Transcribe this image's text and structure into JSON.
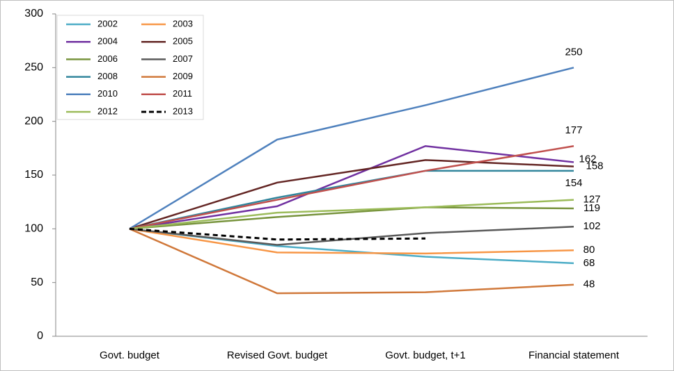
{
  "chart_data": {
    "type": "line",
    "categories": [
      "Govt. budget",
      "Revised Govt. budget",
      "Govt. budget, t+1",
      "Financial statement"
    ],
    "ylim": [
      0,
      300
    ],
    "yticks": [
      0,
      50,
      100,
      150,
      200,
      250,
      300
    ],
    "grid": false,
    "legend": "upper left",
    "series": [
      {
        "name": "2002",
        "color": "#4bacc6",
        "values": [
          100,
          84,
          74,
          68
        ]
      },
      {
        "name": "2003",
        "color": "#f79646",
        "values": [
          100,
          78,
          77,
          80
        ]
      },
      {
        "name": "2004",
        "color": "#7030a0",
        "values": [
          100,
          121,
          177,
          162
        ]
      },
      {
        "name": "2005",
        "color": "#632523",
        "values": [
          100,
          143,
          164,
          158
        ]
      },
      {
        "name": "2006",
        "color": "#77933c",
        "values": [
          100,
          111,
          120,
          119
        ]
      },
      {
        "name": "2007",
        "color": "#595959",
        "values": [
          100,
          85,
          96,
          102
        ]
      },
      {
        "name": "2008",
        "color": "#31859c",
        "values": [
          100,
          129,
          154,
          154
        ]
      },
      {
        "name": "2009",
        "color": "#d0783a",
        "values": [
          100,
          40,
          41,
          48
        ]
      },
      {
        "name": "2010",
        "color": "#4f81bd",
        "values": [
          100,
          183,
          215,
          250
        ]
      },
      {
        "name": "2011",
        "color": "#c0504d",
        "values": [
          100,
          127,
          154,
          177
        ]
      },
      {
        "name": "2012",
        "color": "#9bbb59",
        "values": [
          100,
          115,
          120,
          127
        ]
      },
      {
        "name": "2013",
        "color": "#000000",
        "dashed": true,
        "values": [
          100,
          90,
          91,
          null
        ]
      }
    ]
  }
}
